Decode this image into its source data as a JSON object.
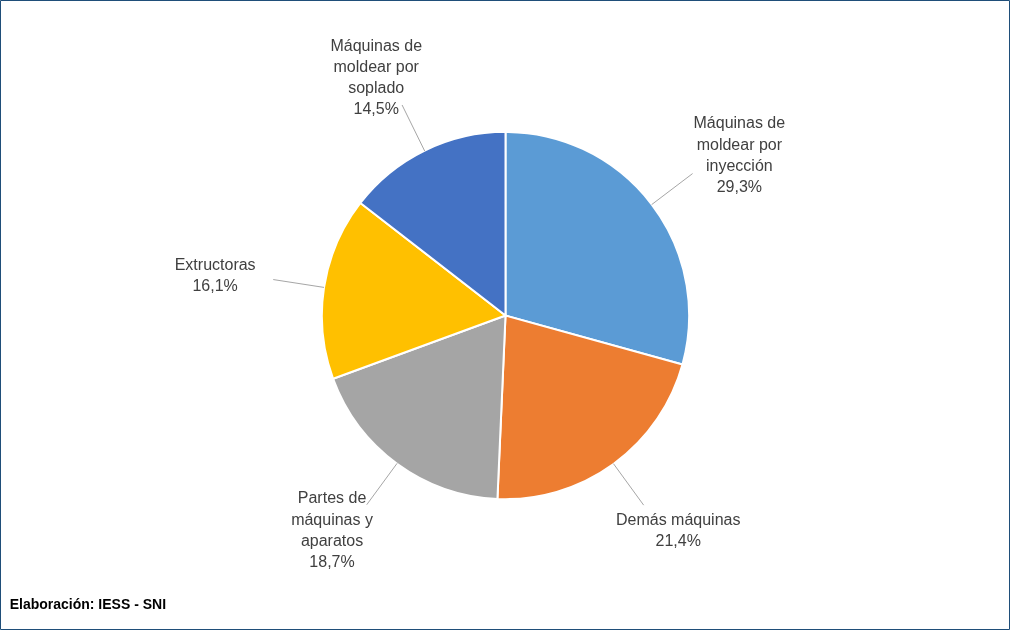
{
  "chart_data": {
    "type": "pie",
    "categories": [
      "Máquinas de moldear por inyección",
      "Demás máquinas",
      "Partes de máquinas y aparatos",
      "Extructoras",
      "Máquinas de moldear por soplado"
    ],
    "values": [
      29.3,
      21.4,
      18.7,
      16.1,
      14.5
    ],
    "colors": [
      "#5b9bd5",
      "#ed7d31",
      "#a5a5a5",
      "#ffc000",
      "#4472c4"
    ],
    "value_labels": [
      "29,3%",
      "21,4%",
      "18,7%",
      "16,1%",
      "14,5%"
    ],
    "annotations": [
      "Elaboración: IESS - SNI"
    ]
  }
}
